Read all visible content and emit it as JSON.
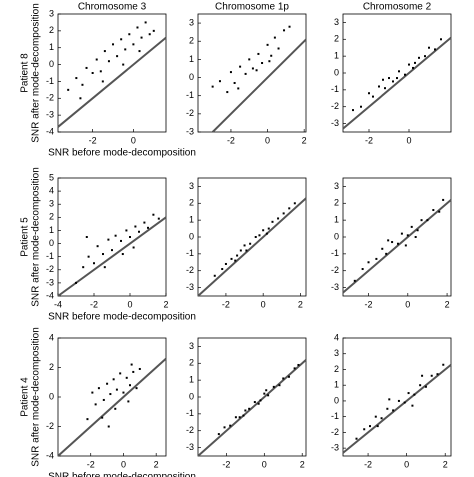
{
  "chart_data": [
    {
      "type": "scatter",
      "title": "Chromosome 3",
      "row_label": "Patient 8",
      "ylabel": "SNR after mode-decomposition",
      "xlabel": "SNR before mode-decomposition",
      "identity_line": true,
      "xlim": [
        -3.7,
        1.6
      ],
      "ylim": [
        -4,
        3
      ],
      "xticks": [
        -2,
        0
      ],
      "yticks": [
        -4,
        -3,
        -2,
        -1,
        0,
        1,
        2,
        3
      ],
      "x": [
        -3.2,
        -2.8,
        -2.5,
        -2.3,
        -2.0,
        -1.8,
        -1.6,
        -1.4,
        -1.2,
        -1.0,
        -0.8,
        -0.6,
        -0.4,
        -0.2,
        0,
        0.2,
        0.4,
        0.6,
        0.8,
        1.0,
        -1.5,
        -0.5,
        0.3,
        -2.6
      ],
      "y": [
        -1.5,
        -0.8,
        -1.2,
        -0.2,
        -0.5,
        0.3,
        -0.4,
        0.8,
        0.2,
        1.2,
        0.5,
        1.5,
        0.9,
        1.8,
        1.2,
        2.2,
        1.6,
        2.5,
        1.8,
        2.0,
        -1.0,
        0.0,
        0.8,
        -2.0
      ]
    },
    {
      "type": "scatter",
      "title": "Chromosome 1p",
      "identity_line": true,
      "xlim": [
        -3.8,
        2.1
      ],
      "ylim": [
        -3,
        3.5
      ],
      "xticks": [
        -2,
        0,
        2
      ],
      "yticks": [
        -3,
        -2,
        -1,
        0,
        1,
        2,
        3
      ],
      "x": [
        -3.0,
        -2.6,
        -2.2,
        -2.0,
        -1.8,
        -1.5,
        -1.2,
        -1.0,
        -0.8,
        -0.5,
        -0.3,
        0,
        0.2,
        0.4,
        0.6,
        0.9,
        1.2,
        -1.6,
        -0.6,
        0.1
      ],
      "y": [
        -0.5,
        -0.2,
        -0.8,
        0.3,
        -0.3,
        0.6,
        0.2,
        1.0,
        0.5,
        1.3,
        0.8,
        1.8,
        1.2,
        2.2,
        1.6,
        2.6,
        2.8,
        -0.6,
        0.4,
        0.9
      ]
    },
    {
      "type": "scatter",
      "title": "Chromosome 2",
      "identity_line": true,
      "xlim": [
        -3.3,
        2.1
      ],
      "ylim": [
        -3.5,
        3.5
      ],
      "xticks": [
        -2,
        0
      ],
      "yticks": [
        -3,
        -2,
        -1,
        0,
        1,
        2,
        3
      ],
      "x": [
        -2.8,
        -2.4,
        -2.0,
        -1.8,
        -1.5,
        -1.2,
        -1.0,
        -0.8,
        -0.5,
        -0.2,
        0,
        0.2,
        0.5,
        0.8,
        1.0,
        1.3,
        1.6,
        -0.6,
        0.3,
        -1.3
      ],
      "y": [
        -2.2,
        -2.0,
        -1.2,
        -1.4,
        -0.8,
        -0.9,
        -0.3,
        -0.5,
        0.1,
        -0.1,
        0.5,
        0.3,
        0.9,
        1.0,
        1.5,
        1.4,
        2.0,
        -0.3,
        0.6,
        -0.4
      ]
    },
    {
      "type": "scatter",
      "row_label": "Patient 5",
      "ylabel": "SNR after mode-decomposition",
      "xlabel": "SNR before mode-decomposition",
      "identity_line": true,
      "xlim": [
        -4,
        2
      ],
      "ylim": [
        -4,
        5
      ],
      "xticks": [
        -4,
        -2,
        0,
        2
      ],
      "yticks": [
        -4,
        -3,
        -2,
        -1,
        0,
        1,
        2,
        3,
        4,
        5
      ],
      "x": [
        -3.0,
        -2.6,
        -2.3,
        -2.0,
        -1.8,
        -1.5,
        -1.2,
        -1.0,
        -0.8,
        -0.5,
        -0.2,
        0,
        0.3,
        0.5,
        0.8,
        1.0,
        1.3,
        1.6,
        -1.4,
        -0.4,
        0.2,
        -2.4
      ],
      "y": [
        -3.0,
        -1.8,
        -1.0,
        -1.5,
        -0.2,
        -0.8,
        0.3,
        -0.5,
        0.6,
        0.2,
        1.0,
        0.5,
        1.3,
        0.9,
        1.6,
        1.2,
        2.2,
        1.9,
        -1.8,
        -0.8,
        -0.3,
        0.5
      ]
    },
    {
      "type": "scatter",
      "identity_line": true,
      "xlim": [
        -3.5,
        2.3
      ],
      "ylim": [
        -3.5,
        3.5
      ],
      "xticks": [
        -2,
        0,
        2
      ],
      "yticks": [
        -3,
        -2,
        -1,
        0,
        1,
        2,
        3
      ],
      "x": [
        -2.6,
        -2.2,
        -2.0,
        -1.7,
        -1.4,
        -1.2,
        -1.0,
        -0.7,
        -0.4,
        -0.2,
        0,
        0.3,
        0.5,
        0.8,
        1.1,
        1.4,
        1.7,
        -0.9,
        0.2,
        -1.5
      ],
      "y": [
        -2.3,
        -1.9,
        -1.6,
        -1.3,
        -1.1,
        -0.8,
        -0.5,
        -0.4,
        0.0,
        0.1,
        0.4,
        0.5,
        0.9,
        1.1,
        1.4,
        1.7,
        2.0,
        -0.8,
        0.2,
        -1.4
      ]
    },
    {
      "type": "scatter",
      "identity_line": true,
      "xlim": [
        -3.3,
        2.2
      ],
      "ylim": [
        -3.5,
        3.5
      ],
      "xticks": [
        -2,
        0,
        2
      ],
      "yticks": [
        -3,
        -2,
        -1,
        0,
        1,
        2,
        3
      ],
      "x": [
        -2.7,
        -2.3,
        -2.0,
        -1.6,
        -1.3,
        -1.1,
        -0.8,
        -0.5,
        -0.3,
        0,
        0.2,
        0.5,
        0.7,
        1.0,
        1.3,
        1.6,
        -1.0,
        0.4,
        -0.1,
        1.8
      ],
      "y": [
        -2.6,
        -1.9,
        -1.5,
        -1.3,
        -0.7,
        -1.0,
        -0.3,
        -0.4,
        0.2,
        0.1,
        0.6,
        0.4,
        1.0,
        1.0,
        1.6,
        1.5,
        -0.2,
        0.0,
        -0.5,
        2.2
      ]
    },
    {
      "type": "scatter",
      "row_label": "Patient 4",
      "ylabel": "SNR after mode-decomposition",
      "xlabel": "SNR before mode-decomposition",
      "identity_line": true,
      "xlim": [
        -4,
        2.6
      ],
      "ylim": [
        -4,
        4
      ],
      "xticks": [
        -2,
        0,
        2
      ],
      "yticks": [
        -4,
        -2,
        0,
        2,
        4
      ],
      "x": [
        -2.2,
        -1.9,
        -1.7,
        -1.5,
        -1.2,
        -1.0,
        -0.8,
        -0.6,
        -0.4,
        -0.2,
        0,
        0.2,
        0.4,
        0.6,
        0.8,
        1.0,
        -1.3,
        -0.5,
        0.3,
        -0.9,
        0.5
      ],
      "y": [
        -1.5,
        0.3,
        -0.5,
        0.6,
        -0.2,
        0.9,
        0.2,
        1.2,
        0.5,
        1.6,
        0.3,
        1.3,
        0.8,
        1.7,
        0.6,
        1.9,
        -1.4,
        -0.8,
        -0.3,
        -2.0,
        2.2
      ]
    },
    {
      "type": "scatter",
      "identity_line": true,
      "xlim": [
        -3.5,
        2.2
      ],
      "ylim": [
        -3.5,
        3.5
      ],
      "xticks": [
        -2,
        0,
        2
      ],
      "yticks": [
        -3,
        -2,
        -1,
        0,
        1,
        2,
        3
      ],
      "x": [
        -2.4,
        -2.1,
        -1.8,
        -1.5,
        -1.3,
        -1.0,
        -0.8,
        -0.5,
        -0.2,
        0,
        0.2,
        0.5,
        0.8,
        1.0,
        1.3,
        1.6,
        1.8,
        -1.1,
        0.1,
        -0.3
      ],
      "y": [
        -2.2,
        -1.8,
        -1.7,
        -1.2,
        -1.2,
        -0.8,
        -0.7,
        -0.3,
        -0.2,
        0.2,
        0.1,
        0.6,
        0.7,
        1.1,
        1.2,
        1.7,
        1.9,
        -1.1,
        0.4,
        -0.4
      ]
    },
    {
      "type": "scatter",
      "identity_line": true,
      "xlim": [
        -3.3,
        2.3
      ],
      "ylim": [
        -3.5,
        4
      ],
      "xticks": [
        -2,
        0,
        2
      ],
      "yticks": [
        -3,
        -2,
        -1,
        0,
        1,
        2,
        3,
        4
      ],
      "x": [
        -2.6,
        -2.2,
        -1.9,
        -1.6,
        -1.3,
        -1.0,
        -0.7,
        -0.4,
        -0.1,
        0.1,
        0.4,
        0.7,
        1.0,
        1.3,
        1.6,
        1.9,
        -0.9,
        0.3,
        -1.5,
        0.8
      ],
      "y": [
        -2.4,
        -1.8,
        -1.6,
        -1.0,
        -1.1,
        -0.5,
        -0.6,
        0.0,
        -0.1,
        0.5,
        0.4,
        1.0,
        0.9,
        1.6,
        1.7,
        2.3,
        0.1,
        -0.3,
        -1.6,
        1.6
      ]
    }
  ]
}
